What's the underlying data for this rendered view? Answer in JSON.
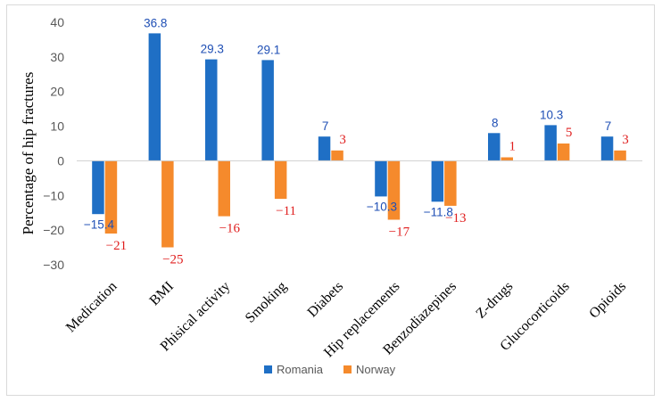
{
  "chart_data": {
    "type": "bar",
    "title": "",
    "xlabel": "",
    "ylabel": "Percentage of hip fractures",
    "ylim": [
      -30,
      40
    ],
    "yticks": [
      40,
      30,
      20,
      10,
      0,
      -10,
      -20,
      -30
    ],
    "categories": [
      "Medication",
      "BMI",
      "Phisical activity",
      "Smoking",
      "Diabets",
      "Hip replacements",
      "Benzodiazepines",
      "Z-drugs",
      "Glucocorticoids",
      "Opioids"
    ],
    "series": [
      {
        "name": "Romania",
        "color": "#1f6fc5",
        "label_color": "#1f4fb5",
        "values": [
          -15.4,
          36.8,
          29.3,
          29.1,
          7,
          -10.3,
          -11.8,
          8,
          10.3,
          7
        ],
        "labels": [
          "−15.4",
          "36.8",
          "29.3",
          "29.1",
          "7",
          "−10.3",
          "−11.8",
          "8",
          "10.3",
          "7"
        ]
      },
      {
        "name": "Norway",
        "color": "#f58a2c",
        "label_color": "#e02020",
        "values": [
          -21,
          -25,
          -16,
          -11,
          3,
          -17,
          -13,
          1,
          5,
          3
        ],
        "labels": [
          "−21",
          "−25",
          "−16",
          "−11",
          "3",
          "−17",
          "−13",
          "1",
          "5",
          "3"
        ]
      }
    ],
    "legend": "bottom",
    "grid": false
  }
}
